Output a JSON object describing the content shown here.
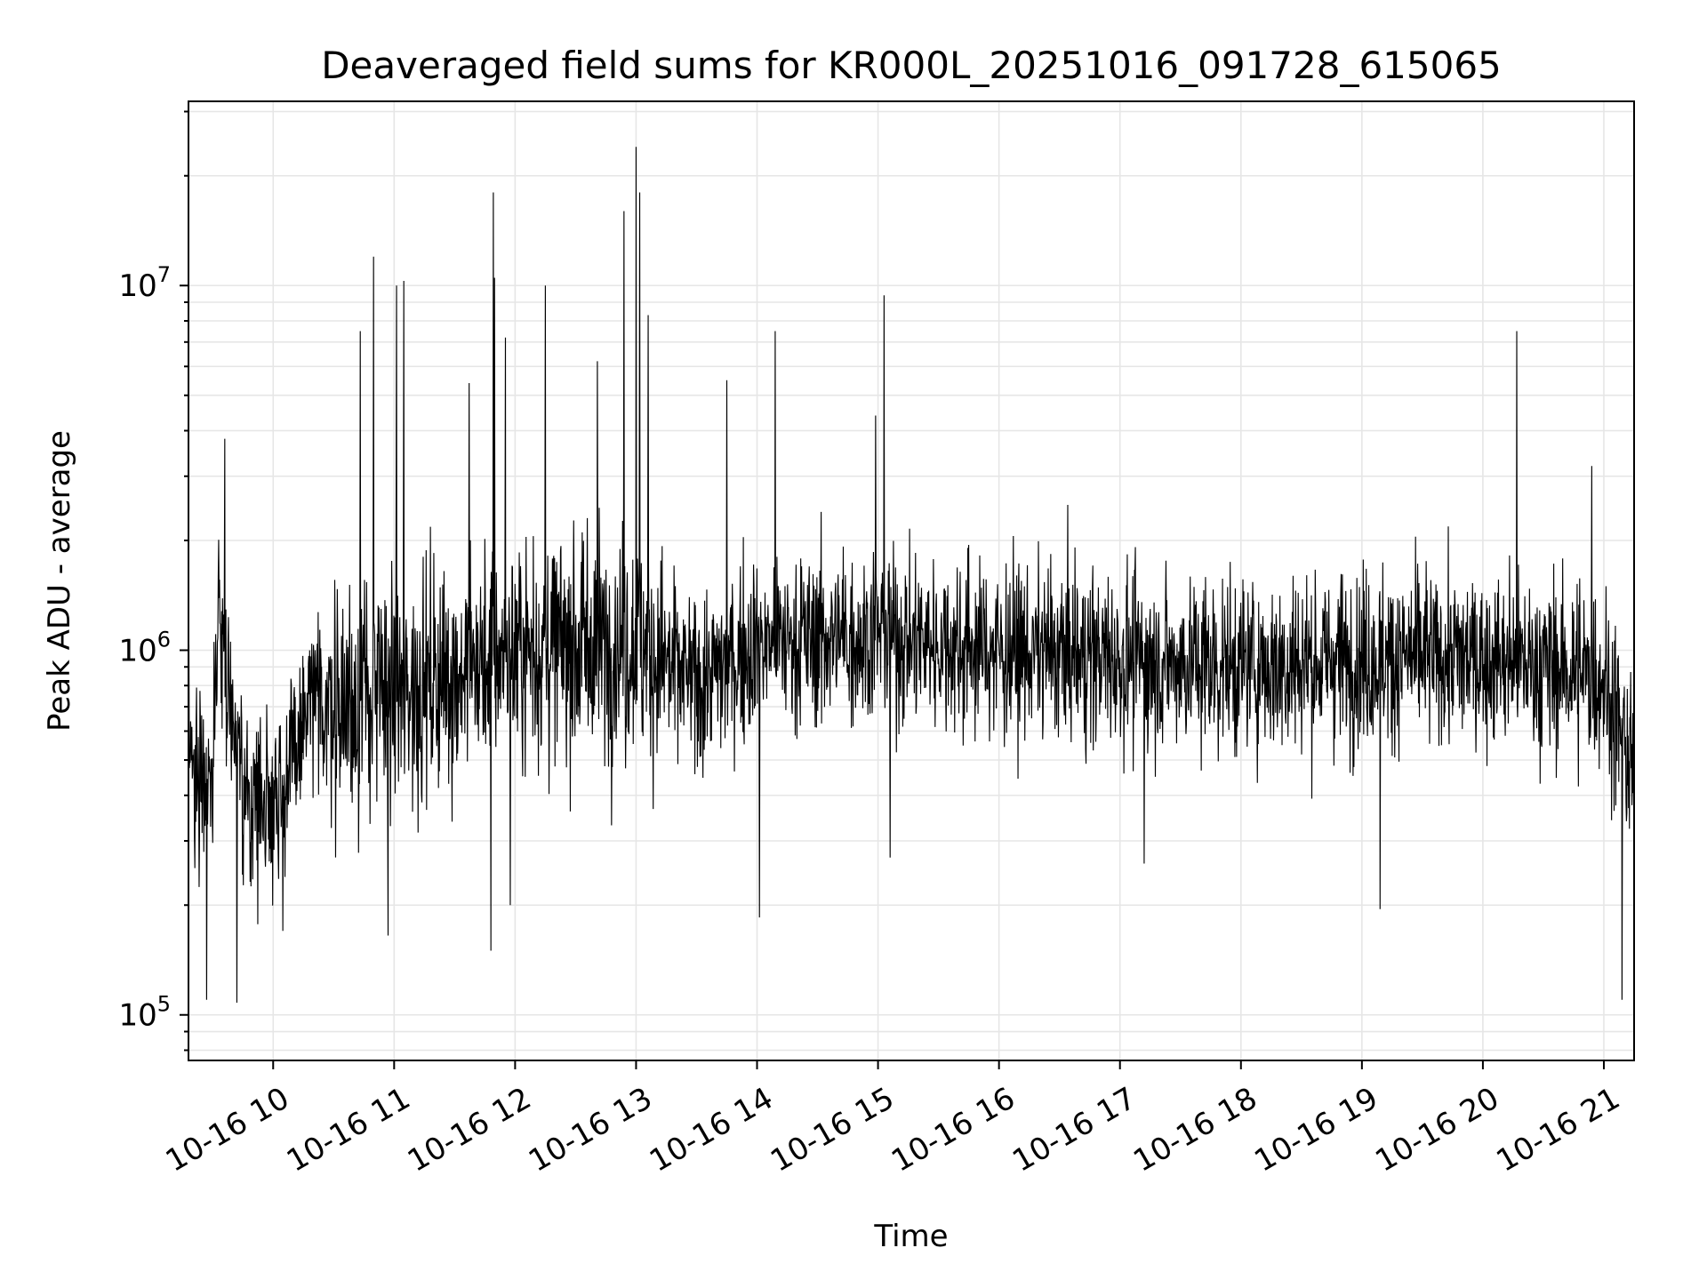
{
  "chart_data": {
    "type": "line",
    "title": "Deaveraged field sums for KR000L_20251016_091728_615065",
    "xlabel": "Time",
    "ylabel": "Peak ADU - average",
    "yscale": "log",
    "ylim": [
      75000,
      32000000
    ],
    "xlim_hours": [
      9.3,
      21.25
    ],
    "x_tick_labels": [
      "10-16 10",
      "10-16 11",
      "10-16 12",
      "10-16 13",
      "10-16 14",
      "10-16 15",
      "10-16 16",
      "10-16 17",
      "10-16 18",
      "10-16 19",
      "10-16 20",
      "10-16 21"
    ],
    "x_tick_hours": [
      10,
      11,
      12,
      13,
      14,
      15,
      16,
      17,
      18,
      19,
      20,
      21
    ],
    "y_major_ticks": [
      {
        "value": 100000,
        "base": "10",
        "exp": "5"
      },
      {
        "value": 1000000,
        "base": "10",
        "exp": "6"
      },
      {
        "value": 10000000,
        "base": "10",
        "exp": "7"
      }
    ],
    "grid": true,
    "line_color": "#000000",
    "series": [
      {
        "name": "deaveraged field sums",
        "baseline_envelope": [
          {
            "hour": 9.3,
            "level": 500000
          },
          {
            "hour": 9.5,
            "level": 450000
          },
          {
            "hour": 9.55,
            "level": 1400000
          },
          {
            "hour": 9.75,
            "level": 380000
          },
          {
            "hour": 10.1,
            "level": 420000
          },
          {
            "hour": 10.3,
            "level": 700000
          },
          {
            "hour": 11.0,
            "level": 750000
          },
          {
            "hour": 12.0,
            "level": 1000000
          },
          {
            "hour": 13.0,
            "level": 1050000
          },
          {
            "hour": 13.5,
            "level": 800000
          },
          {
            "hour": 14.0,
            "level": 1050000
          },
          {
            "hour": 15.0,
            "level": 1100000
          },
          {
            "hour": 16.0,
            "level": 1000000
          },
          {
            "hour": 17.0,
            "level": 950000
          },
          {
            "hour": 18.0,
            "level": 900000
          },
          {
            "hour": 19.0,
            "level": 950000
          },
          {
            "hour": 20.0,
            "level": 950000
          },
          {
            "hour": 21.0,
            "level": 850000
          },
          {
            "hour": 21.25,
            "level": 450000
          }
        ],
        "spikes": [
          {
            "hour": 9.6,
            "value": 3800000
          },
          {
            "hour": 10.72,
            "value": 7500000
          },
          {
            "hour": 10.83,
            "value": 12000000
          },
          {
            "hour": 11.02,
            "value": 10000000
          },
          {
            "hour": 11.08,
            "value": 10300000
          },
          {
            "hour": 11.62,
            "value": 5400000
          },
          {
            "hour": 11.82,
            "value": 18000000
          },
          {
            "hour": 11.83,
            "value": 10500000
          },
          {
            "hour": 11.92,
            "value": 7200000
          },
          {
            "hour": 12.25,
            "value": 10000000
          },
          {
            "hour": 12.68,
            "value": 6200000
          },
          {
            "hour": 12.9,
            "value": 16000000
          },
          {
            "hour": 13.0,
            "value": 24000000
          },
          {
            "hour": 13.03,
            "value": 18000000
          },
          {
            "hour": 13.1,
            "value": 8300000
          },
          {
            "hour": 13.75,
            "value": 5500000
          },
          {
            "hour": 14.15,
            "value": 7500000
          },
          {
            "hour": 14.98,
            "value": 4400000
          },
          {
            "hour": 15.05,
            "value": 9400000
          },
          {
            "hour": 20.28,
            "value": 7500000
          },
          {
            "hour": 20.9,
            "value": 3200000
          }
        ],
        "dips": [
          {
            "hour": 9.45,
            "value": 110000
          },
          {
            "hour": 9.7,
            "value": 108000
          },
          {
            "hour": 10.08,
            "value": 170000
          },
          {
            "hour": 10.95,
            "value": 165000
          },
          {
            "hour": 11.8,
            "value": 150000
          },
          {
            "hour": 11.96,
            "value": 200000
          },
          {
            "hour": 14.02,
            "value": 185000
          },
          {
            "hour": 15.1,
            "value": 270000
          },
          {
            "hour": 17.2,
            "value": 260000
          },
          {
            "hour": 19.15,
            "value": 195000
          },
          {
            "hour": 21.15,
            "value": 110000
          }
        ]
      }
    ]
  }
}
